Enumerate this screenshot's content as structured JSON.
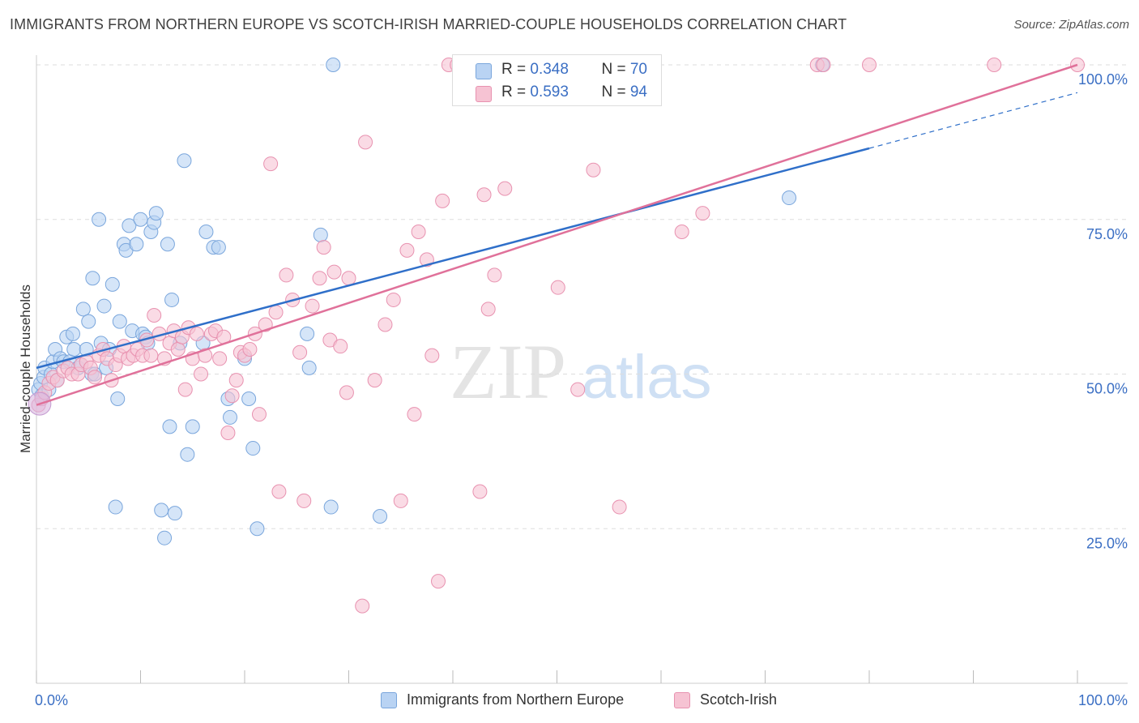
{
  "title": "IMMIGRANTS FROM NORTHERN EUROPE VS SCOTCH-IRISH MARRIED-COUPLE HOUSEHOLDS CORRELATION CHART",
  "source": "Source: ZipAtlas.com",
  "watermark": {
    "zip": "ZIP",
    "atlas": "atlas"
  },
  "legend_top": {
    "blue": {
      "r_label": "R = ",
      "r_value": "0.348",
      "n_label": "N = ",
      "n_value": "70"
    },
    "pink": {
      "r_label": "R = ",
      "r_value": "0.593",
      "n_label": "N = ",
      "n_value": "94"
    }
  },
  "legend_bottom": {
    "blue_label": "Immigrants from Northern Europe",
    "pink_label": "Scotch-Irish"
  },
  "colors": {
    "blue_fill": "#b9d3f3",
    "blue_stroke": "#7aa6dc",
    "blue_line": "#2f6fc9",
    "pink_fill": "#f6c3d3",
    "pink_stroke": "#e892b0",
    "pink_line": "#e0719a",
    "grid": "#dddddd",
    "tick_label": "#3b6fc4"
  },
  "chart_data": {
    "type": "scatter",
    "title": "IMMIGRANTS FROM NORTHERN EUROPE VS SCOTCH-IRISH MARRIED-COUPLE HOUSEHOLDS CORRELATION CHART",
    "xlabel": "",
    "ylabel": "Married-couple Households",
    "xlim": [
      0,
      100
    ],
    "ylim": [
      0,
      100
    ],
    "x_tick_labels": [
      "0.0%",
      "100.0%"
    ],
    "y_tick_labels": [
      "25.0%",
      "50.0%",
      "75.0%",
      "100.0%"
    ],
    "y_ticks": [
      25,
      50,
      75,
      100
    ],
    "grid": "horizontal dashed",
    "legend_position": "top-center",
    "series": [
      {
        "name": "Immigrants from Northern Europe",
        "color": "#b9d3f3",
        "r": 0.348,
        "n": 70,
        "trend": {
          "x0": 0,
          "y0": 51,
          "x1": 80,
          "y1": 86.5,
          "dashed_to": [
            100,
            95.5
          ]
        },
        "points": [
          [
            0.2,
            47.5
          ],
          [
            0.4,
            48.5
          ],
          [
            0.5,
            46.5
          ],
          [
            0.7,
            49.5
          ],
          [
            0.8,
            51
          ],
          [
            1.2,
            47.5
          ],
          [
            1.4,
            50
          ],
          [
            1.6,
            52
          ],
          [
            1.8,
            54
          ],
          [
            2.0,
            49
          ],
          [
            2.3,
            52.5
          ],
          [
            2.6,
            52
          ],
          [
            2.9,
            56
          ],
          [
            3.2,
            52
          ],
          [
            3.5,
            56.5
          ],
          [
            3.6,
            54
          ],
          [
            4.0,
            51
          ],
          [
            4.3,
            51.5
          ],
          [
            4.5,
            60.5
          ],
          [
            4.8,
            54
          ],
          [
            5.0,
            58.5
          ],
          [
            5.3,
            50
          ],
          [
            5.4,
            65.5
          ],
          [
            5.6,
            50
          ],
          [
            6.0,
            75
          ],
          [
            6.2,
            55
          ],
          [
            6.5,
            61
          ],
          [
            6.7,
            51
          ],
          [
            7.0,
            54
          ],
          [
            7.3,
            64.5
          ],
          [
            7.6,
            28.5
          ],
          [
            7.8,
            46
          ],
          [
            8.0,
            58.5
          ],
          [
            8.4,
            71
          ],
          [
            8.6,
            70
          ],
          [
            8.9,
            74
          ],
          [
            9.2,
            57
          ],
          [
            9.6,
            71
          ],
          [
            10.0,
            75
          ],
          [
            10.2,
            56.5
          ],
          [
            10.5,
            56
          ],
          [
            10.7,
            55
          ],
          [
            11.0,
            73
          ],
          [
            11.3,
            74.5
          ],
          [
            11.5,
            76
          ],
          [
            12.0,
            28
          ],
          [
            12.3,
            23.5
          ],
          [
            12.6,
            71
          ],
          [
            12.8,
            41.5
          ],
          [
            13.0,
            62
          ],
          [
            13.3,
            27.5
          ],
          [
            13.8,
            55
          ],
          [
            14.2,
            84.5
          ],
          [
            14.5,
            37
          ],
          [
            15.0,
            41.5
          ],
          [
            16.0,
            55
          ],
          [
            16.3,
            73
          ],
          [
            17.0,
            70.5
          ],
          [
            17.5,
            70.5
          ],
          [
            18.4,
            46
          ],
          [
            18.6,
            43
          ],
          [
            20.0,
            52.5
          ],
          [
            20.4,
            46
          ],
          [
            20.8,
            38
          ],
          [
            21.2,
            25
          ],
          [
            26.0,
            56.5
          ],
          [
            26.2,
            51
          ],
          [
            27.3,
            72.5
          ],
          [
            28.3,
            28.5
          ],
          [
            28.5,
            100
          ],
          [
            33.0,
            27
          ],
          [
            53.5,
            100
          ],
          [
            54.0,
            100
          ],
          [
            72.3,
            78.5
          ],
          [
            75.5,
            100
          ]
        ]
      },
      {
        "name": "Scotch-Irish",
        "color": "#f6c3d3",
        "r": 0.593,
        "n": 94,
        "trend": {
          "x0": 0,
          "y0": 45,
          "x1": 100,
          "y1": 100
        },
        "points": [
          [
            0.2,
            45
          ],
          [
            0.5,
            46
          ],
          [
            0.8,
            47
          ],
          [
            1.2,
            48.5
          ],
          [
            1.6,
            49.5
          ],
          [
            2.0,
            49
          ],
          [
            2.6,
            50.5
          ],
          [
            3.0,
            51
          ],
          [
            3.4,
            50
          ],
          [
            4.0,
            50
          ],
          [
            4.3,
            51.5
          ],
          [
            4.8,
            52
          ],
          [
            5.2,
            51
          ],
          [
            5.6,
            49.5
          ],
          [
            6.0,
            53
          ],
          [
            6.4,
            54
          ],
          [
            6.8,
            52.5
          ],
          [
            7.2,
            49
          ],
          [
            7.6,
            51.5
          ],
          [
            8.0,
            53
          ],
          [
            8.4,
            54.5
          ],
          [
            8.8,
            52.5
          ],
          [
            9.3,
            53
          ],
          [
            9.7,
            54
          ],
          [
            10.2,
            53
          ],
          [
            10.6,
            55.5
          ],
          [
            11.0,
            53
          ],
          [
            11.3,
            59.5
          ],
          [
            11.8,
            56.5
          ],
          [
            12.3,
            52.5
          ],
          [
            12.8,
            55
          ],
          [
            13.2,
            57
          ],
          [
            13.6,
            54
          ],
          [
            14.0,
            56
          ],
          [
            14.3,
            47.5
          ],
          [
            14.6,
            57.5
          ],
          [
            15.0,
            52.5
          ],
          [
            15.4,
            56.5
          ],
          [
            15.8,
            50
          ],
          [
            16.2,
            53
          ],
          [
            16.8,
            56.5
          ],
          [
            17.2,
            57
          ],
          [
            17.6,
            52.5
          ],
          [
            18.0,
            56
          ],
          [
            18.4,
            40.5
          ],
          [
            18.8,
            46.5
          ],
          [
            19.2,
            49
          ],
          [
            19.6,
            53.5
          ],
          [
            20.0,
            53
          ],
          [
            20.5,
            54
          ],
          [
            21.0,
            56.5
          ],
          [
            21.4,
            43.5
          ],
          [
            22.0,
            58
          ],
          [
            22.5,
            84
          ],
          [
            23.0,
            60
          ],
          [
            23.3,
            31
          ],
          [
            24.0,
            66
          ],
          [
            24.6,
            62
          ],
          [
            25.3,
            53.5
          ],
          [
            25.7,
            29.5
          ],
          [
            26.5,
            61
          ],
          [
            27.2,
            65.5
          ],
          [
            27.6,
            70.5
          ],
          [
            28.2,
            55.5
          ],
          [
            28.6,
            66.5
          ],
          [
            29.2,
            54.5
          ],
          [
            29.8,
            47
          ],
          [
            30.0,
            65.5
          ],
          [
            31.3,
            12.5
          ],
          [
            31.6,
            87.5
          ],
          [
            32.5,
            49
          ],
          [
            33.5,
            58
          ],
          [
            34.3,
            62
          ],
          [
            35.0,
            29.5
          ],
          [
            35.6,
            70
          ],
          [
            36.3,
            43.5
          ],
          [
            36.7,
            73
          ],
          [
            37.5,
            68.5
          ],
          [
            38.0,
            53
          ],
          [
            38.6,
            16.5
          ],
          [
            39.0,
            78
          ],
          [
            39.6,
            100
          ],
          [
            40.4,
            100
          ],
          [
            41.2,
            100
          ],
          [
            42.0,
            100
          ],
          [
            42.6,
            31
          ],
          [
            43.0,
            79
          ],
          [
            43.4,
            60.5
          ],
          [
            44.0,
            66
          ],
          [
            45.0,
            80
          ],
          [
            50.1,
            64
          ],
          [
            52.0,
            47.5
          ],
          [
            53.5,
            83
          ],
          [
            56.0,
            28.5
          ],
          [
            62.0,
            73
          ],
          [
            64.0,
            76
          ],
          [
            75.0,
            100
          ],
          [
            75.6,
            100
          ],
          [
            80.0,
            100
          ],
          [
            92.0,
            100
          ],
          [
            100,
            100
          ]
        ]
      }
    ]
  }
}
